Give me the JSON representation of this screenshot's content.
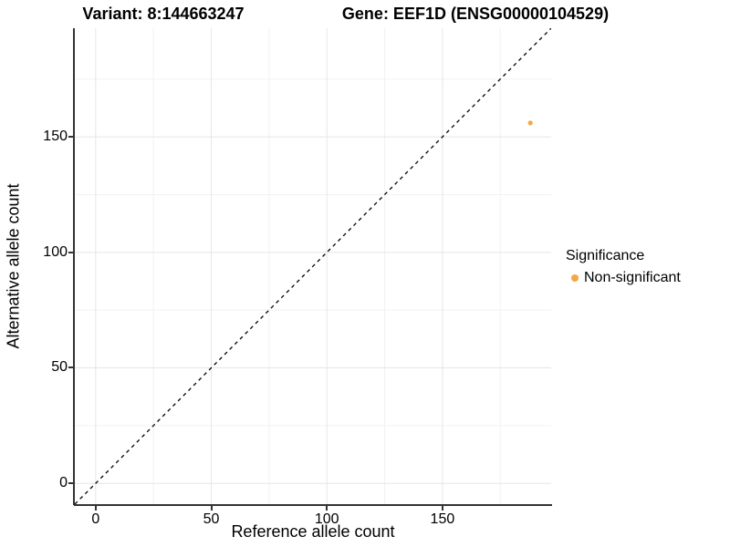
{
  "chart_data": {
    "type": "scatter",
    "title_left": "Variant: 8:144663247",
    "title_right": "Gene: EEF1D (ENSG00000104529)",
    "xlabel": "Reference allele count",
    "ylabel": "Alternative allele count",
    "xlim": [
      -9,
      197
    ],
    "ylim": [
      -9,
      197
    ],
    "xticks": [
      0,
      50,
      100,
      150
    ],
    "yticks": [
      0,
      50,
      100,
      150
    ],
    "minor_ticks_x": [
      25,
      75,
      125,
      175
    ],
    "minor_ticks_y": [
      25,
      75,
      125,
      175
    ],
    "grid": true,
    "reference_line": {
      "type": "identity",
      "style": "dashed",
      "from": [
        -9,
        -9
      ],
      "to": [
        197,
        197
      ],
      "color": "#000000"
    },
    "series": [
      {
        "name": "Non-significant",
        "color": "#F7A544",
        "points": [
          {
            "x": 188,
            "y": 156
          }
        ]
      }
    ],
    "legend": {
      "title": "Significance",
      "position": "right",
      "entries": [
        {
          "label": "Non-significant",
          "color": "#F7A544"
        }
      ]
    },
    "colors": {
      "major_grid": "#E6E6E6",
      "minor_grid": "#F2F2F2",
      "axis": "#333333",
      "background": "#FFFFFF"
    }
  }
}
